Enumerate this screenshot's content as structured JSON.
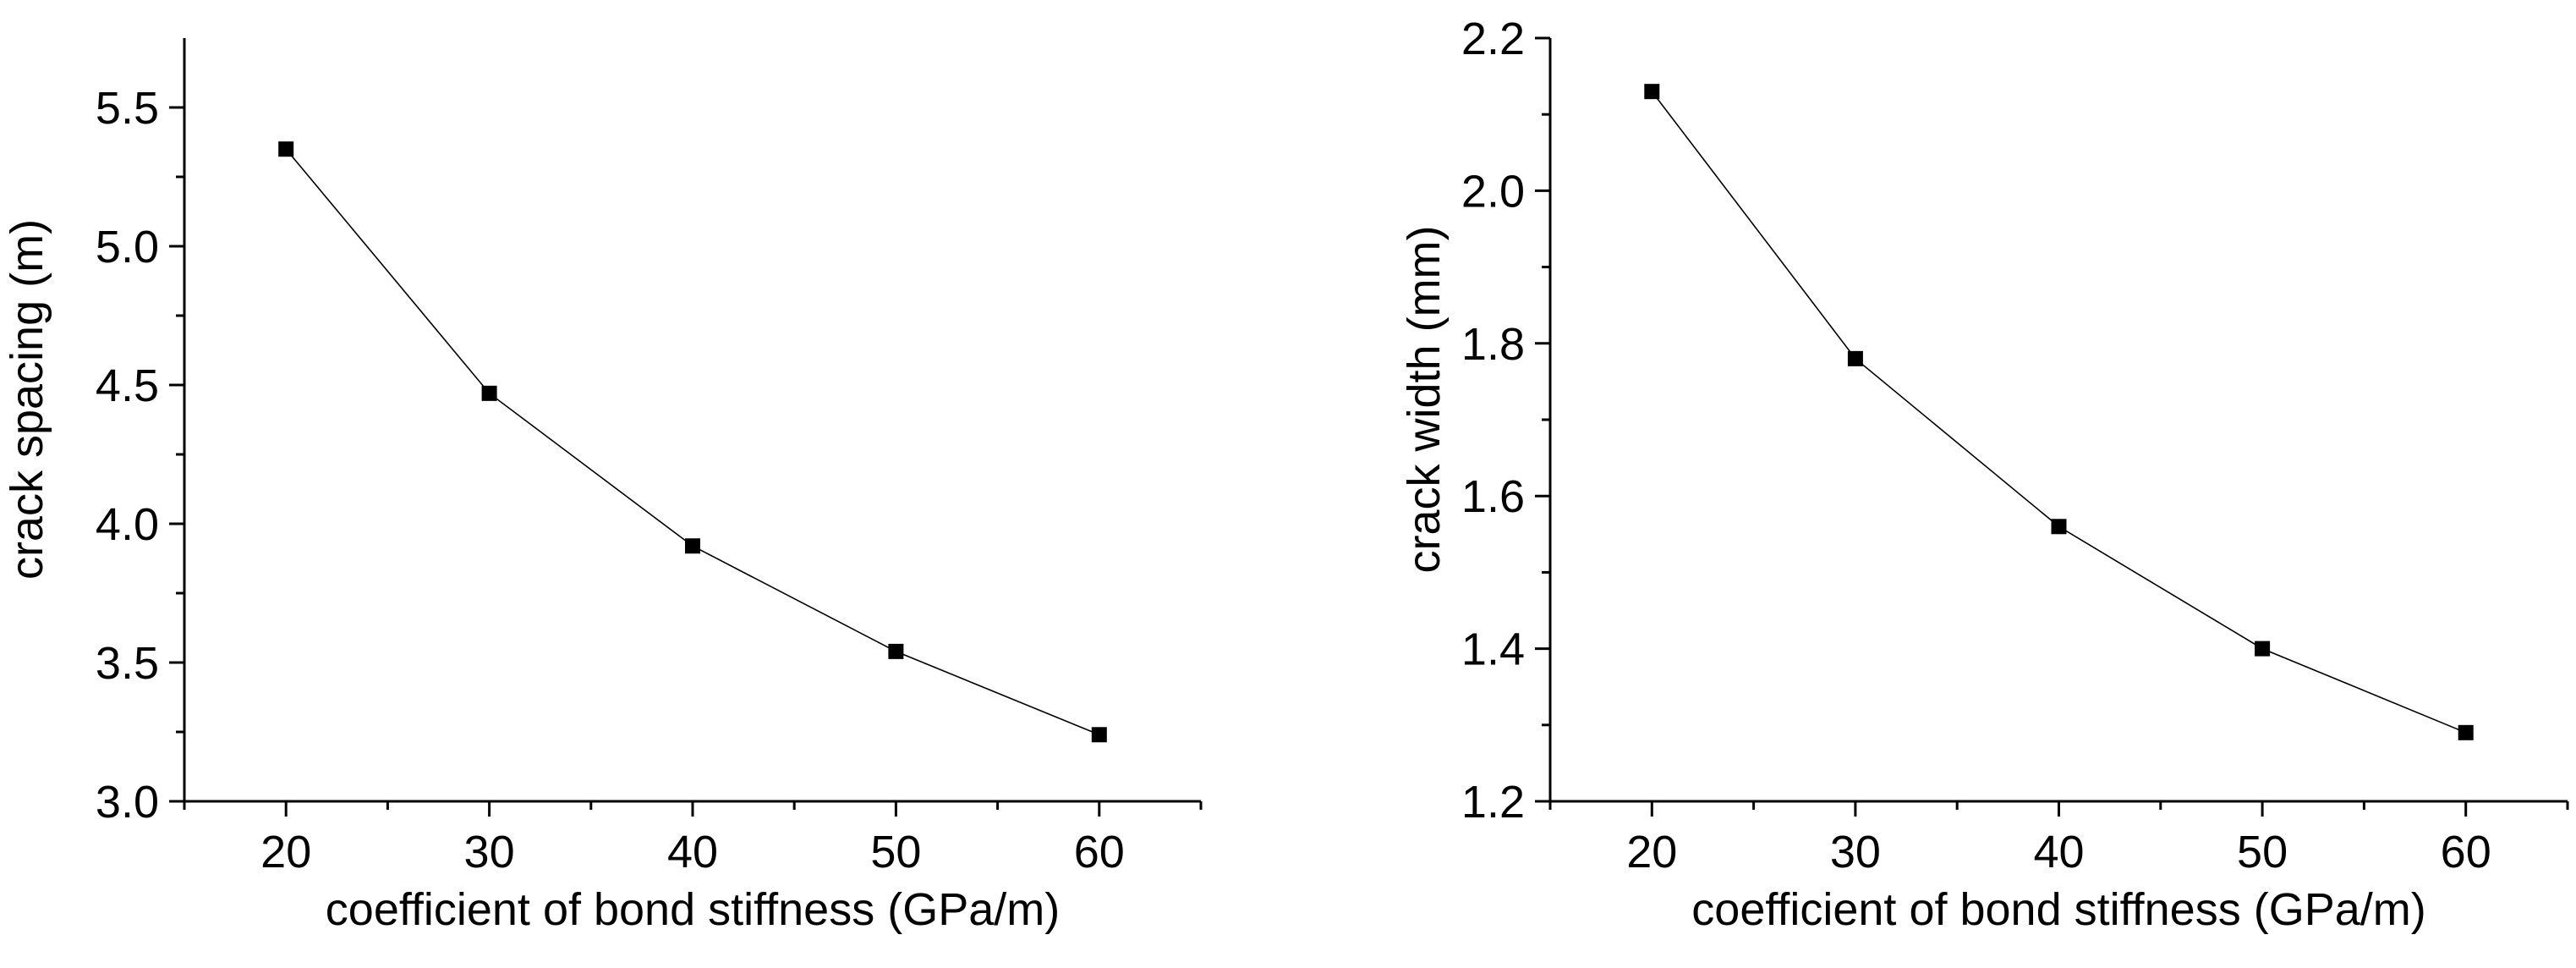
{
  "chart_data": [
    {
      "type": "line",
      "title": "",
      "xlabel": "coefficient of bond stiffness (GPa/m)",
      "ylabel": "crack spacing (m)",
      "x": [
        20,
        30,
        40,
        50,
        60
      ],
      "series": [
        {
          "name": "crack spacing",
          "values": [
            5.35,
            4.47,
            3.92,
            3.54,
            3.24
          ]
        }
      ],
      "xlim": [
        15,
        65
      ],
      "ylim": [
        3.0,
        5.75
      ],
      "xticks": [
        20,
        30,
        40,
        50,
        60
      ],
      "xtick_labels": [
        "20",
        "30",
        "40",
        "50",
        "60"
      ],
      "xminor": [
        15,
        25,
        35,
        45,
        55,
        65
      ],
      "yticks": [
        3.0,
        3.5,
        4.0,
        4.5,
        5.0,
        5.5
      ],
      "ytick_labels": [
        "3.0",
        "3.5",
        "4.0",
        "4.5",
        "5.0",
        "5.5"
      ],
      "yminor": [
        3.25,
        3.75,
        4.25,
        4.75,
        5.25
      ],
      "grid": false,
      "marker": "square",
      "color": "#000000"
    },
    {
      "type": "line",
      "title": "",
      "xlabel": "coefficient of bond stiffness (GPa/m)",
      "ylabel": "crack width (mm)",
      "x": [
        20,
        30,
        40,
        50,
        60
      ],
      "series": [
        {
          "name": "crack width",
          "values": [
            2.13,
            1.78,
            1.56,
            1.4,
            1.29
          ]
        }
      ],
      "xlim": [
        15,
        65
      ],
      "ylim": [
        1.2,
        2.2
      ],
      "xticks": [
        20,
        30,
        40,
        50,
        60
      ],
      "xtick_labels": [
        "20",
        "30",
        "40",
        "50",
        "60"
      ],
      "xminor": [
        15,
        25,
        35,
        45,
        55,
        65
      ],
      "yticks": [
        1.2,
        1.4,
        1.6,
        1.8,
        2.0,
        2.2
      ],
      "ytick_labels": [
        "1.2",
        "1.4",
        "1.6",
        "1.8",
        "2.0",
        "2.2"
      ],
      "yminor": [
        1.3,
        1.5,
        1.7,
        1.9,
        2.1
      ],
      "grid": false,
      "marker": "square",
      "color": "#000000"
    }
  ]
}
